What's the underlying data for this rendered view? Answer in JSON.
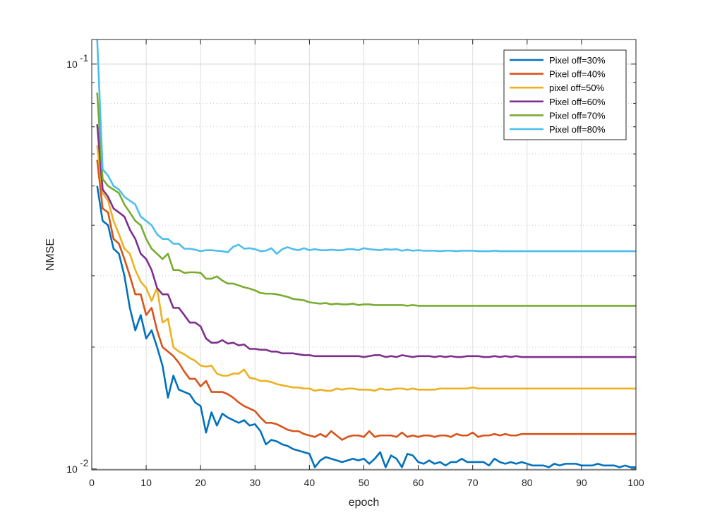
{
  "chart_data": {
    "type": "line",
    "title": "",
    "xlabel": "epoch",
    "ylabel": "NMSE",
    "xlim": [
      0,
      100
    ],
    "ylim": [
      0.00995,
      0.115
    ],
    "yscale": "log",
    "grid": true,
    "legend_position": "top-right",
    "x_ticks": [
      0,
      10,
      20,
      30,
      40,
      50,
      60,
      70,
      80,
      90,
      100
    ],
    "x_tick_labels": [
      "0",
      "10",
      "20",
      "30",
      "40",
      "50",
      "60",
      "70",
      "80",
      "90",
      "100"
    ],
    "y_major_ticks": [
      0.01,
      0.1
    ],
    "y_major_labels": [
      {
        "base": "10",
        "exp": "-2"
      },
      {
        "base": "10",
        "exp": "-1"
      }
    ],
    "y_minor_ticks": [
      0.02,
      0.03,
      0.04,
      0.05,
      0.06,
      0.07,
      0.08,
      0.09
    ],
    "x_start": 1,
    "series": [
      {
        "name": "Pixel off=30%",
        "color": "#0072BD",
        "values": [
          0.05,
          0.041,
          0.04,
          0.035,
          0.034,
          0.03,
          0.025,
          0.022,
          0.024,
          0.021,
          0.022,
          0.02,
          0.018,
          0.015,
          0.017,
          0.0157,
          0.0155,
          0.0153,
          0.0146,
          0.0143,
          0.0123,
          0.0138,
          0.0128,
          0.0137,
          0.0134,
          0.0132,
          0.013,
          0.0132,
          0.0128,
          0.0129,
          0.0124,
          0.0115,
          0.0118,
          0.0117,
          0.0115,
          0.0114,
          0.0112,
          0.0111,
          0.011,
          0.0109,
          0.0101,
          0.0105,
          0.0107,
          0.0106,
          0.0105,
          0.0104,
          0.0105,
          0.0106,
          0.0105,
          0.0106,
          0.0103,
          0.0106,
          0.011,
          0.0101,
          0.0108,
          0.0106,
          0.0101,
          0.0109,
          0.0108,
          0.0104,
          0.0103,
          0.0105,
          0.0103,
          0.0104,
          0.0102,
          0.0104,
          0.0104,
          0.0106,
          0.0104,
          0.0104,
          0.0104,
          0.0104,
          0.0102,
          0.0106,
          0.0104,
          0.0103,
          0.0104,
          0.0103,
          0.0104,
          0.0103,
          0.0102,
          0.0102,
          0.0102,
          0.0101,
          0.0103,
          0.0102,
          0.0103,
          0.0103,
          0.0103,
          0.0102,
          0.0102,
          0.0102,
          0.0103,
          0.0102,
          0.0102,
          0.0102,
          0.0101,
          0.0102,
          0.0101,
          0.0101
        ]
      },
      {
        "name": "Pixel off=40%",
        "color": "#D95319",
        "values": [
          0.058,
          0.044,
          0.043,
          0.037,
          0.036,
          0.033,
          0.03,
          0.027,
          0.027,
          0.024,
          0.025,
          0.022,
          0.02,
          0.0195,
          0.019,
          0.0183,
          0.0174,
          0.0167,
          0.0167,
          0.016,
          0.0165,
          0.0155,
          0.0155,
          0.0155,
          0.0153,
          0.015,
          0.0146,
          0.0143,
          0.0141,
          0.0139,
          0.0134,
          0.013,
          0.013,
          0.0129,
          0.0127,
          0.0125,
          0.0124,
          0.0124,
          0.0122,
          0.0121,
          0.012,
          0.0122,
          0.012,
          0.0124,
          0.0121,
          0.0118,
          0.012,
          0.0121,
          0.0121,
          0.012,
          0.0124,
          0.012,
          0.0121,
          0.0121,
          0.0121,
          0.012,
          0.0123,
          0.012,
          0.0121,
          0.012,
          0.0121,
          0.0121,
          0.012,
          0.0121,
          0.0121,
          0.012,
          0.0122,
          0.0121,
          0.0121,
          0.0123,
          0.012,
          0.0121,
          0.0121,
          0.0122,
          0.0121,
          0.0122,
          0.0121,
          0.0121,
          0.0122,
          0.0122,
          0.0122,
          0.0122,
          0.0122,
          0.0122,
          0.0122,
          0.0122,
          0.0122,
          0.0122,
          0.0122,
          0.0122,
          0.0122,
          0.0122,
          0.0122,
          0.0122,
          0.0122,
          0.0122,
          0.0122,
          0.0122,
          0.0122,
          0.0122
        ]
      },
      {
        "name": "pixel off=50%",
        "color": "#EDB120",
        "values": [
          0.063,
          0.048,
          0.046,
          0.041,
          0.038,
          0.035,
          0.034,
          0.031,
          0.029,
          0.028,
          0.026,
          0.028,
          0.023,
          0.0235,
          0.02,
          0.0195,
          0.0192,
          0.0188,
          0.0185,
          0.018,
          0.0179,
          0.018,
          0.0172,
          0.017,
          0.017,
          0.0172,
          0.0172,
          0.0176,
          0.0168,
          0.0167,
          0.0165,
          0.0165,
          0.0164,
          0.0162,
          0.0161,
          0.016,
          0.0159,
          0.0159,
          0.0158,
          0.0158,
          0.0156,
          0.0157,
          0.0156,
          0.0156,
          0.0158,
          0.0157,
          0.0158,
          0.0158,
          0.0157,
          0.0157,
          0.0157,
          0.0156,
          0.0158,
          0.0157,
          0.0157,
          0.0158,
          0.0158,
          0.0157,
          0.0158,
          0.0157,
          0.0157,
          0.0157,
          0.0157,
          0.0158,
          0.0158,
          0.0158,
          0.0158,
          0.0158,
          0.0158,
          0.0159,
          0.0158,
          0.0158,
          0.0158,
          0.0158,
          0.0158,
          0.0158,
          0.0158,
          0.0158,
          0.0158,
          0.0158,
          0.0158,
          0.0158,
          0.0158,
          0.0158,
          0.0158,
          0.0158,
          0.0158,
          0.0158,
          0.0158,
          0.0158,
          0.0158,
          0.0158,
          0.0158,
          0.0158,
          0.0158,
          0.0158,
          0.0158,
          0.0158,
          0.0158,
          0.0158
        ]
      },
      {
        "name": "Pixel off=60%",
        "color": "#7E2F8E",
        "values": [
          0.071,
          0.049,
          0.047,
          0.044,
          0.043,
          0.042,
          0.039,
          0.037,
          0.034,
          0.033,
          0.031,
          0.028,
          0.027,
          0.027,
          0.025,
          0.025,
          0.024,
          0.023,
          0.023,
          0.0225,
          0.021,
          0.0205,
          0.0205,
          0.0208,
          0.0204,
          0.0205,
          0.0202,
          0.0203,
          0.0198,
          0.0198,
          0.0197,
          0.0197,
          0.0195,
          0.0195,
          0.0193,
          0.0193,
          0.0193,
          0.0192,
          0.0191,
          0.0191,
          0.019,
          0.019,
          0.019,
          0.019,
          0.019,
          0.019,
          0.019,
          0.019,
          0.019,
          0.0189,
          0.019,
          0.0191,
          0.0191,
          0.0189,
          0.019,
          0.0189,
          0.0191,
          0.019,
          0.0189,
          0.019,
          0.019,
          0.019,
          0.0189,
          0.019,
          0.0189,
          0.019,
          0.0189,
          0.0189,
          0.019,
          0.019,
          0.019,
          0.0189,
          0.0189,
          0.019,
          0.0189,
          0.019,
          0.0189,
          0.019,
          0.0189,
          0.0189,
          0.0189,
          0.0189,
          0.0189,
          0.0189,
          0.0189,
          0.0189,
          0.0189,
          0.0189,
          0.0189,
          0.0189,
          0.0189,
          0.0189,
          0.0189,
          0.0189,
          0.0189,
          0.0189,
          0.0189,
          0.0189,
          0.0189,
          0.0189
        ]
      },
      {
        "name": "Pixel off=70%",
        "color": "#77AC30",
        "values": [
          0.085,
          0.052,
          0.05,
          0.049,
          0.048,
          0.045,
          0.043,
          0.041,
          0.04,
          0.037,
          0.035,
          0.034,
          0.033,
          0.034,
          0.031,
          0.031,
          0.0305,
          0.0306,
          0.0306,
          0.0305,
          0.0295,
          0.0295,
          0.0299,
          0.0292,
          0.0287,
          0.0287,
          0.0284,
          0.0281,
          0.0279,
          0.0276,
          0.0272,
          0.0271,
          0.0271,
          0.027,
          0.0268,
          0.0266,
          0.0263,
          0.0262,
          0.0261,
          0.0258,
          0.0257,
          0.0256,
          0.0257,
          0.0255,
          0.0256,
          0.0255,
          0.0255,
          0.0256,
          0.0254,
          0.0255,
          0.0255,
          0.0254,
          0.0254,
          0.0254,
          0.0254,
          0.0254,
          0.0254,
          0.0253,
          0.0254,
          0.0253,
          0.0253,
          0.0253,
          0.0253,
          0.0253,
          0.0253,
          0.0253,
          0.0253,
          0.0253,
          0.0253,
          0.0253,
          0.0253,
          0.0253,
          0.0253,
          0.0253,
          0.0253,
          0.0253,
          0.0253,
          0.0253,
          0.0253,
          0.0253,
          0.0253,
          0.0253,
          0.0253,
          0.0253,
          0.0253,
          0.0253,
          0.0253,
          0.0253,
          0.0253,
          0.0253,
          0.0253,
          0.0253,
          0.0253,
          0.0253,
          0.0253,
          0.0253,
          0.0253,
          0.0253,
          0.0253,
          0.0253
        ]
      },
      {
        "name": "Pixel off=80%",
        "color": "#4DBEEE",
        "values": [
          0.115,
          0.055,
          0.053,
          0.05,
          0.049,
          0.047,
          0.046,
          0.045,
          0.042,
          0.041,
          0.04,
          0.038,
          0.037,
          0.037,
          0.036,
          0.036,
          0.035,
          0.035,
          0.0348,
          0.0345,
          0.0347,
          0.0347,
          0.0346,
          0.0345,
          0.0343,
          0.0354,
          0.0358,
          0.035,
          0.0351,
          0.0349,
          0.0345,
          0.0346,
          0.0351,
          0.034,
          0.0349,
          0.0353,
          0.0349,
          0.0347,
          0.0351,
          0.0347,
          0.0349,
          0.0347,
          0.0347,
          0.0348,
          0.0347,
          0.0347,
          0.0349,
          0.0349,
          0.0347,
          0.0351,
          0.0349,
          0.0348,
          0.0347,
          0.0349,
          0.0348,
          0.0349,
          0.0346,
          0.0348,
          0.0346,
          0.0347,
          0.0346,
          0.0346,
          0.0346,
          0.0345,
          0.0346,
          0.0346,
          0.0345,
          0.0346,
          0.0346,
          0.0346,
          0.0345,
          0.0345,
          0.0345,
          0.0346,
          0.0345,
          0.0345,
          0.0345,
          0.0345,
          0.0345,
          0.0345,
          0.0345,
          0.0345,
          0.0345,
          0.0345,
          0.0345,
          0.0345,
          0.0345,
          0.0345,
          0.0345,
          0.0345,
          0.0345,
          0.0345,
          0.0345,
          0.0345,
          0.0345,
          0.0345,
          0.0345,
          0.0345,
          0.0345,
          0.0345
        ]
      }
    ]
  }
}
